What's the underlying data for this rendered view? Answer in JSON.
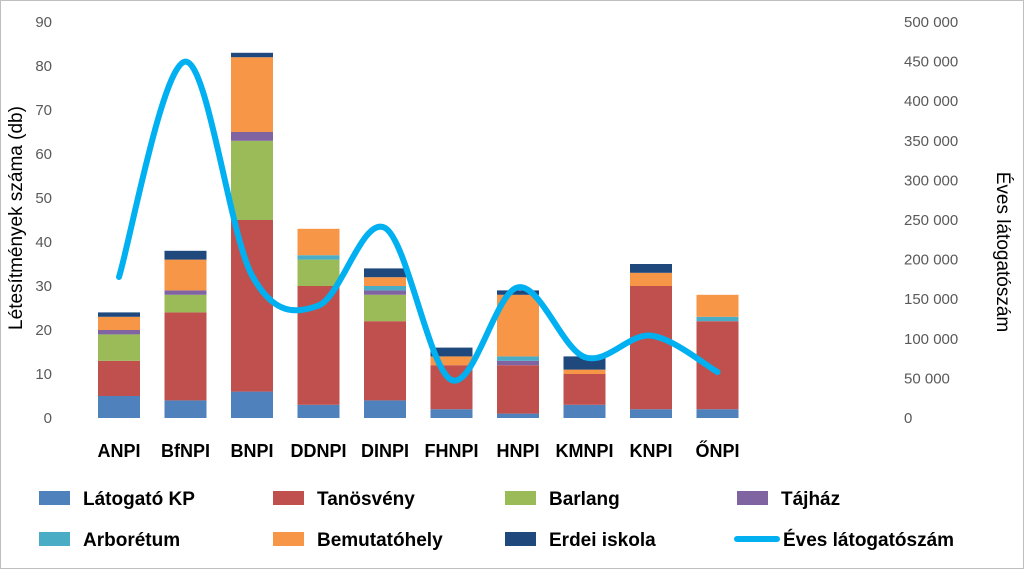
{
  "chart_data": {
    "type": "bar",
    "stacked": true,
    "categories": [
      "ANPI",
      "BfNPI",
      "BNPI",
      "DDNPI",
      "DINPI",
      "FHNPI",
      "HNPI",
      "KMNPI",
      "KNPI",
      "ŐNPI"
    ],
    "series": [
      {
        "name": "Látogató KP",
        "color": "#4f81bd",
        "axis": "left",
        "values": [
          5,
          4,
          6,
          3,
          4,
          2,
          1,
          3,
          2,
          2
        ]
      },
      {
        "name": "Tanösvény",
        "color": "#c0504d",
        "axis": "left",
        "values": [
          8,
          20,
          39,
          27,
          18,
          10,
          11,
          7,
          28,
          20
        ]
      },
      {
        "name": "Barlang",
        "color": "#9bbb59",
        "axis": "left",
        "values": [
          6,
          4,
          18,
          6,
          6,
          0,
          0,
          0,
          0,
          0
        ]
      },
      {
        "name": "Tájház",
        "color": "#8064a2",
        "axis": "left",
        "values": [
          1,
          1,
          2,
          0,
          1,
          0,
          1,
          0,
          0,
          0
        ]
      },
      {
        "name": "Arborétum",
        "color": "#4bacc6",
        "axis": "left",
        "values": [
          0,
          0,
          0,
          1,
          1,
          0,
          1,
          0,
          0,
          1
        ]
      },
      {
        "name": "Bemutatóhely",
        "color": "#f79646",
        "axis": "left",
        "values": [
          3,
          7,
          17,
          6,
          2,
          2,
          14,
          1,
          3,
          5
        ]
      },
      {
        "name": "Erdei iskola",
        "color": "#1f497d",
        "axis": "left",
        "values": [
          1,
          2,
          1,
          0,
          2,
          2,
          1,
          3,
          2,
          0
        ]
      },
      {
        "name": "Éves látogatószám",
        "type": "line",
        "smooth": true,
        "color": "#00b0f0",
        "axis": "right",
        "values": [
          178000,
          450000,
          180000,
          142000,
          240000,
          48000,
          165000,
          77000,
          104000,
          58000
        ]
      }
    ],
    "ylabel": "Létesítmények száma (db)",
    "y2label": "Éves látogatószám",
    "xlabel": "",
    "ylim": [
      0,
      90
    ],
    "y_ticks": [
      "0",
      "10",
      "20",
      "30",
      "40",
      "50",
      "60",
      "70",
      "80",
      "90"
    ],
    "y2lim": [
      0,
      500000
    ],
    "y2_ticks": [
      "0",
      "50 000",
      "100 000",
      "150 000",
      "200 000",
      "250 000",
      "300 000",
      "350 000",
      "400 000",
      "450 000",
      "500 000"
    ],
    "grid": false,
    "legend": "bottom"
  }
}
